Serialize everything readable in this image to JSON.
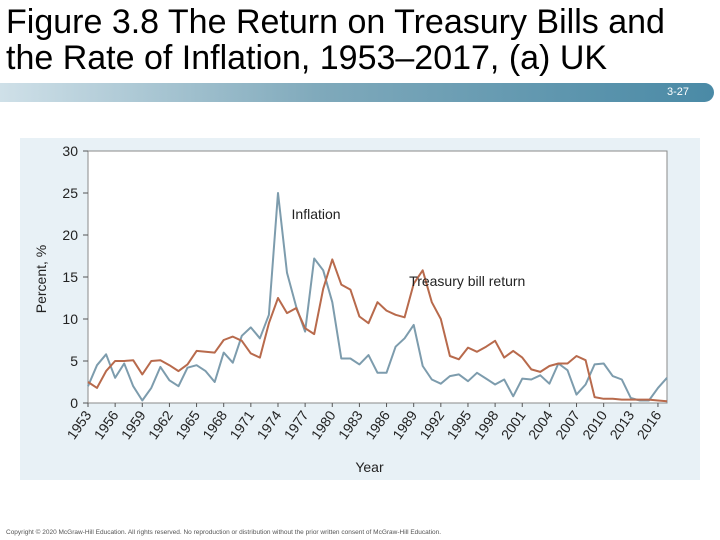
{
  "slide": {
    "title": "Figure 3.8 The Return on Treasury Bills and the Rate of Inflation, 1953–2017, (a) UK",
    "slide_number": "3-27",
    "copyright": "Copyright © 2020 McGraw-Hill Education. All rights reserved. No reproduction or distribution without the prior written consent of McGraw-Hill Education."
  },
  "colors": {
    "inflation": "#7d9cad",
    "treasury": "#b86a4c",
    "panel": "#e8f1f6",
    "title_bar_end": "#4a8aa6"
  },
  "chart_data": {
    "type": "line",
    "title": "",
    "xlabel": "Year",
    "ylabel": "Percent, %",
    "ylim": [
      0,
      30
    ],
    "xlim": [
      1953,
      2017
    ],
    "yticks": [
      0,
      5,
      10,
      15,
      20,
      25,
      30
    ],
    "xtick_labels": [
      "1953",
      "1956",
      "1959",
      "1962",
      "1965",
      "1968",
      "1971",
      "1974",
      "1977",
      "1980",
      "1983",
      "1986",
      "1989",
      "1992",
      "1995",
      "1998",
      "2001",
      "2004",
      "2007",
      "2010",
      "2013",
      "2016"
    ],
    "grid": false,
    "series": [
      {
        "name": "Inflation",
        "x": [
          1953,
          1954,
          1955,
          1956,
          1957,
          1958,
          1959,
          1960,
          1961,
          1962,
          1963,
          1964,
          1965,
          1966,
          1967,
          1968,
          1969,
          1970,
          1971,
          1972,
          1973,
          1974,
          1975,
          1976,
          1977,
          1978,
          1979,
          1980,
          1981,
          1982,
          1983,
          1984,
          1985,
          1986,
          1987,
          1988,
          1989,
          1990,
          1991,
          1992,
          1993,
          1994,
          1995,
          1996,
          1997,
          1998,
          1999,
          2000,
          2001,
          2002,
          2003,
          2004,
          2005,
          2006,
          2007,
          2008,
          2009,
          2010,
          2011,
          2012,
          2013,
          2014,
          2015,
          2016,
          2017
        ],
        "values": [
          2.0,
          4.5,
          5.8,
          3.0,
          4.7,
          2.0,
          0.3,
          1.8,
          4.3,
          2.7,
          2.0,
          4.2,
          4.5,
          3.8,
          2.5,
          6.0,
          4.8,
          8.0,
          9.0,
          7.7,
          10.5,
          25.0,
          15.5,
          11.5,
          8.5,
          17.2,
          15.8,
          12.0,
          5.3,
          5.3,
          4.6,
          5.7,
          3.6,
          3.6,
          6.7,
          7.7,
          9.3,
          4.4,
          2.8,
          2.3,
          3.2,
          3.4,
          2.6,
          3.6,
          2.9,
          2.2,
          2.8,
          0.8,
          2.9,
          2.8,
          3.3,
          2.3,
          4.7,
          3.9,
          1.0,
          2.2,
          4.6,
          4.7,
          3.2,
          2.8,
          0.6,
          0.3,
          0.3,
          1.8,
          3.0
        ]
      },
      {
        "name": "Treasury bill return",
        "x": [
          1953,
          1954,
          1955,
          1956,
          1957,
          1958,
          1959,
          1960,
          1961,
          1962,
          1963,
          1964,
          1965,
          1966,
          1967,
          1968,
          1969,
          1970,
          1971,
          1972,
          1973,
          1974,
          1975,
          1976,
          1977,
          1978,
          1979,
          1980,
          1981,
          1982,
          1983,
          1984,
          1985,
          1986,
          1987,
          1988,
          1989,
          1990,
          1991,
          1992,
          1993,
          1994,
          1995,
          1996,
          1997,
          1998,
          1999,
          2000,
          2001,
          2002,
          2003,
          2004,
          2005,
          2006,
          2007,
          2008,
          2009,
          2010,
          2011,
          2012,
          2013,
          2014,
          2015,
          2016,
          2017
        ],
        "values": [
          2.5,
          1.8,
          3.8,
          5.0,
          5.0,
          5.1,
          3.4,
          5.0,
          5.1,
          4.5,
          3.8,
          4.6,
          6.2,
          6.1,
          6.0,
          7.5,
          7.9,
          7.4,
          5.9,
          5.4,
          9.5,
          12.5,
          10.7,
          11.3,
          8.9,
          8.2,
          13.6,
          17.1,
          14.1,
          13.5,
          10.3,
          9.5,
          12.0,
          11.0,
          10.5,
          10.2,
          14.2,
          15.8,
          12.0,
          10.0,
          5.6,
          5.2,
          6.6,
          6.1,
          6.7,
          7.4,
          5.4,
          6.2,
          5.4,
          4.0,
          3.7,
          4.4,
          4.7,
          4.7,
          5.6,
          5.1,
          0.7,
          0.5,
          0.5,
          0.4,
          0.4,
          0.4,
          0.4,
          0.3,
          0.2
        ]
      }
    ],
    "annotations": [
      {
        "text": "Inflation",
        "x": 1975.5,
        "y": 22.5
      },
      {
        "text": "Treasury bill return",
        "x": 1988.5,
        "y": 14.5
      }
    ]
  }
}
